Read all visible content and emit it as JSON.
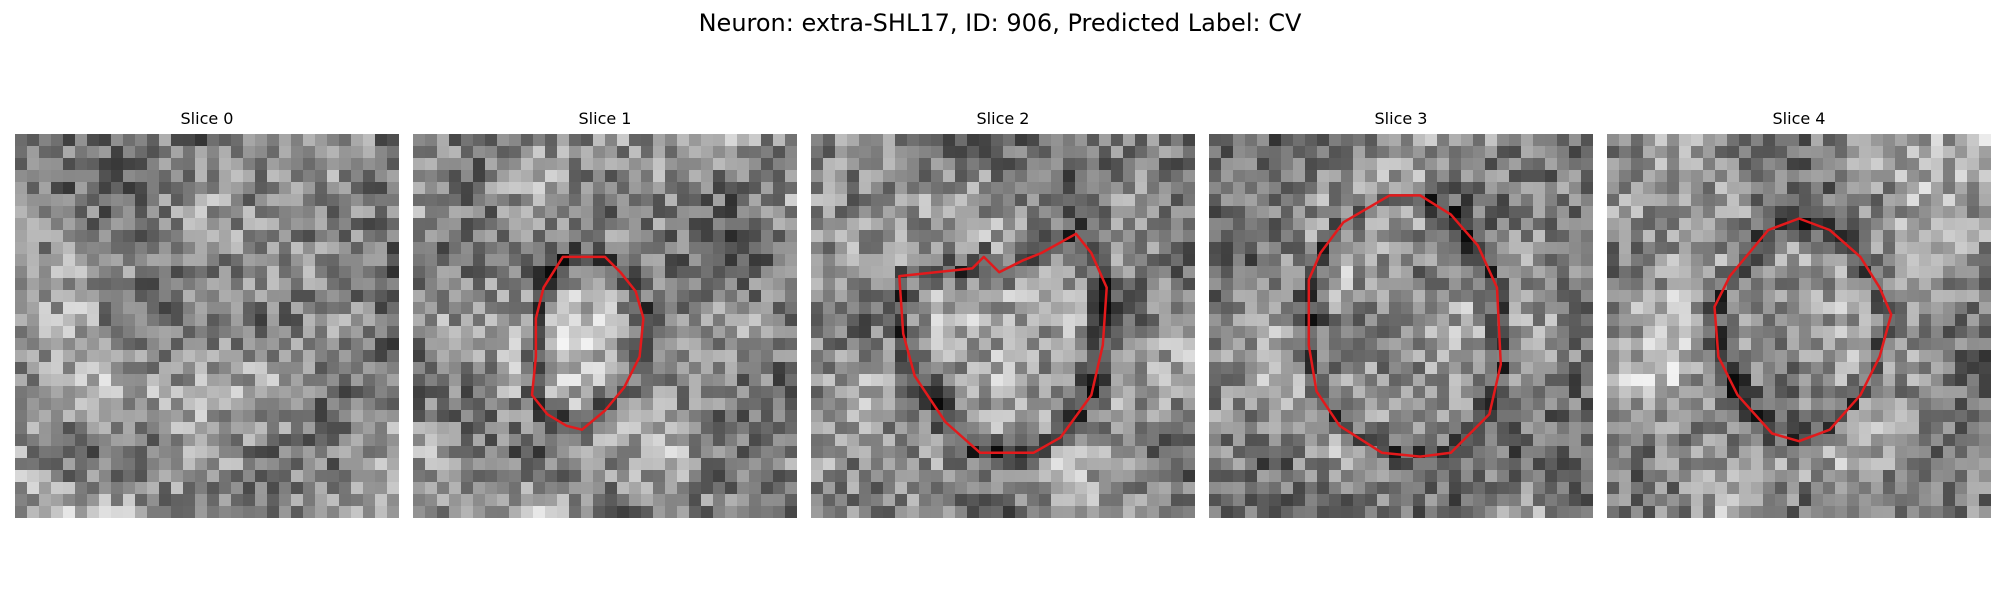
{
  "figure": {
    "title": "Neuron: extra-SHL17, ID: 906, Predicted Label: CV"
  },
  "grid_cells": 32,
  "contour_color": "#e31a1c",
  "panels": [
    {
      "title": "Slice 0",
      "seed": 11,
      "contour": null
    },
    {
      "title": "Slice 1",
      "seed": 23,
      "contour": [
        [
          0.39,
          0.32
        ],
        [
          0.5,
          0.32
        ],
        [
          0.54,
          0.36
        ],
        [
          0.58,
          0.41
        ],
        [
          0.6,
          0.48
        ],
        [
          0.59,
          0.58
        ],
        [
          0.55,
          0.66
        ],
        [
          0.5,
          0.72
        ],
        [
          0.44,
          0.77
        ],
        [
          0.4,
          0.76
        ],
        [
          0.35,
          0.73
        ],
        [
          0.31,
          0.68
        ],
        [
          0.32,
          0.58
        ],
        [
          0.32,
          0.48
        ],
        [
          0.34,
          0.4
        ]
      ]
    },
    {
      "title": "Slice 2",
      "seed": 37,
      "contour": [
        [
          0.23,
          0.37
        ],
        [
          0.42,
          0.35
        ],
        [
          0.45,
          0.32
        ],
        [
          0.49,
          0.36
        ],
        [
          0.55,
          0.33
        ],
        [
          0.6,
          0.31
        ],
        [
          0.69,
          0.26
        ],
        [
          0.73,
          0.31
        ],
        [
          0.77,
          0.4
        ],
        [
          0.76,
          0.55
        ],
        [
          0.73,
          0.68
        ],
        [
          0.65,
          0.79
        ],
        [
          0.58,
          0.83
        ],
        [
          0.44,
          0.83
        ],
        [
          0.35,
          0.75
        ],
        [
          0.27,
          0.63
        ],
        [
          0.24,
          0.52
        ]
      ]
    },
    {
      "title": "Slice 3",
      "seed": 53,
      "contour": [
        [
          0.35,
          0.23
        ],
        [
          0.47,
          0.16
        ],
        [
          0.55,
          0.16
        ],
        [
          0.63,
          0.21
        ],
        [
          0.7,
          0.29
        ],
        [
          0.75,
          0.4
        ],
        [
          0.76,
          0.6
        ],
        [
          0.73,
          0.73
        ],
        [
          0.63,
          0.83
        ],
        [
          0.55,
          0.84
        ],
        [
          0.45,
          0.83
        ],
        [
          0.34,
          0.76
        ],
        [
          0.28,
          0.67
        ],
        [
          0.26,
          0.55
        ],
        [
          0.26,
          0.38
        ],
        [
          0.29,
          0.31
        ]
      ]
    },
    {
      "title": "Slice 4",
      "seed": 71,
      "contour": [
        [
          0.42,
          0.25
        ],
        [
          0.5,
          0.22
        ],
        [
          0.58,
          0.25
        ],
        [
          0.66,
          0.32
        ],
        [
          0.71,
          0.4
        ],
        [
          0.74,
          0.47
        ],
        [
          0.71,
          0.58
        ],
        [
          0.66,
          0.68
        ],
        [
          0.58,
          0.77
        ],
        [
          0.5,
          0.8
        ],
        [
          0.43,
          0.78
        ],
        [
          0.34,
          0.68
        ],
        [
          0.29,
          0.58
        ],
        [
          0.28,
          0.45
        ],
        [
          0.32,
          0.37
        ]
      ]
    }
  ]
}
